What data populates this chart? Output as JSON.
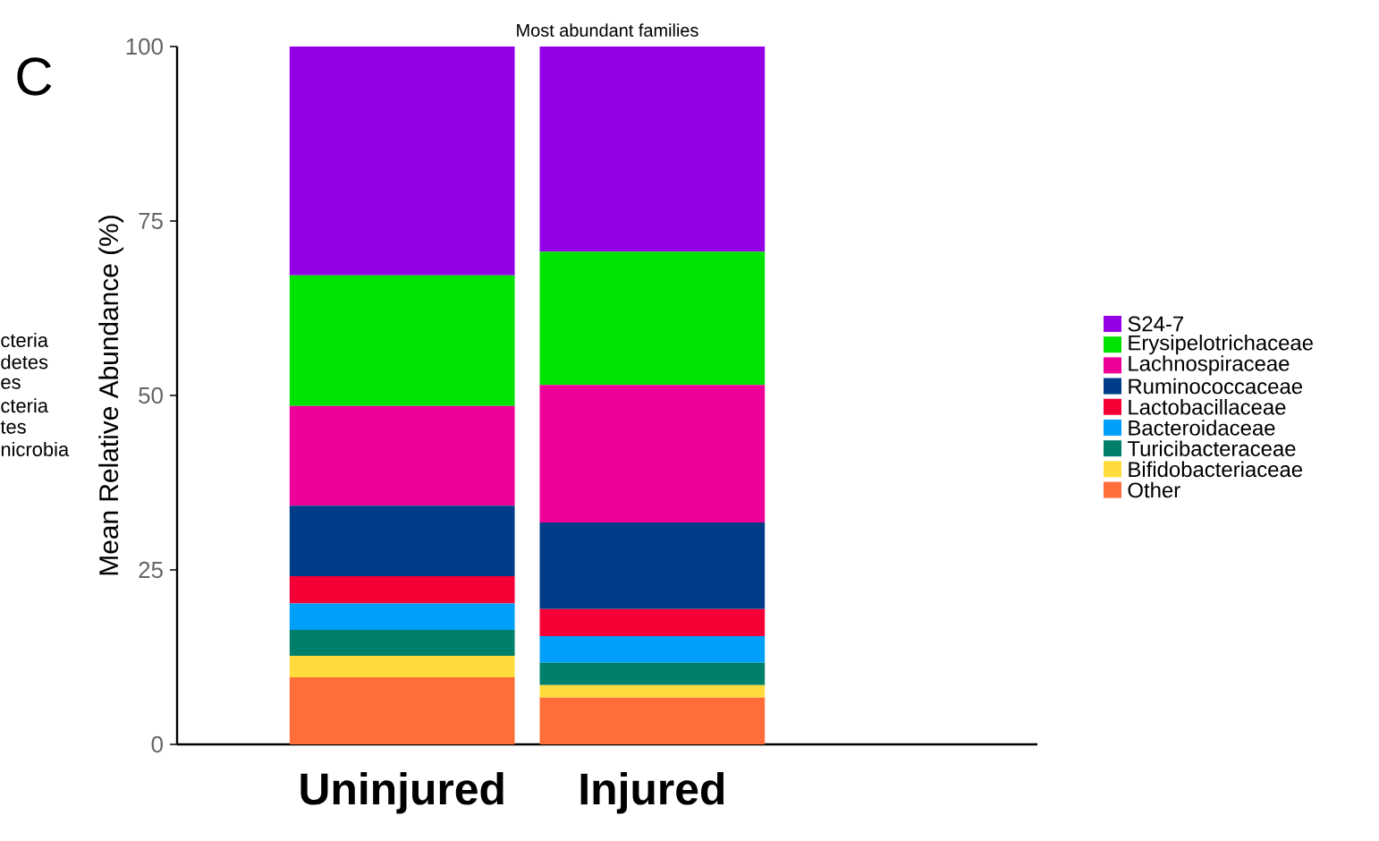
{
  "chart_data": {
    "type": "bar",
    "stacked": true,
    "title": "Most abundant families",
    "ylabel": "Mean Relative Abundance (%)",
    "categories": [
      "Uninjured",
      "Injured"
    ],
    "series": [
      {
        "name": "Other",
        "color": "#ff6e3a",
        "values": [
          9.6,
          6.7
        ]
      },
      {
        "name": "Bifidobacteriaceae",
        "color": "#ffdc3c",
        "values": [
          3.1,
          1.8
        ]
      },
      {
        "name": "Turicibacteraceae",
        "color": "#00806a",
        "values": [
          3.7,
          3.2
        ]
      },
      {
        "name": "Bacteroidaceae",
        "color": "#00a0fa",
        "values": [
          3.8,
          3.8
        ]
      },
      {
        "name": "Lactobacillaceae",
        "color": "#f50036",
        "values": [
          3.9,
          3.9
        ]
      },
      {
        "name": "Ruminococcaceae",
        "color": "#003c87",
        "values": [
          10.1,
          12.4
        ]
      },
      {
        "name": "Lachnospiraceae",
        "color": "#ee0099",
        "values": [
          14.3,
          19.7
        ]
      },
      {
        "name": "Erysipelotrichaceae",
        "color": "#00e300",
        "values": [
          18.7,
          19.1
        ]
      },
      {
        "name": "S24-7",
        "color": "#9400e6",
        "values": [
          32.8,
          29.4
        ]
      }
    ],
    "ylim": [
      0,
      100
    ],
    "yticks": [
      0,
      25,
      50,
      75,
      100
    ],
    "legend": "right",
    "annotations": [
      "C",
      "cteria",
      "detes",
      "es",
      "cteria",
      "tes",
      "nicrobia"
    ]
  }
}
